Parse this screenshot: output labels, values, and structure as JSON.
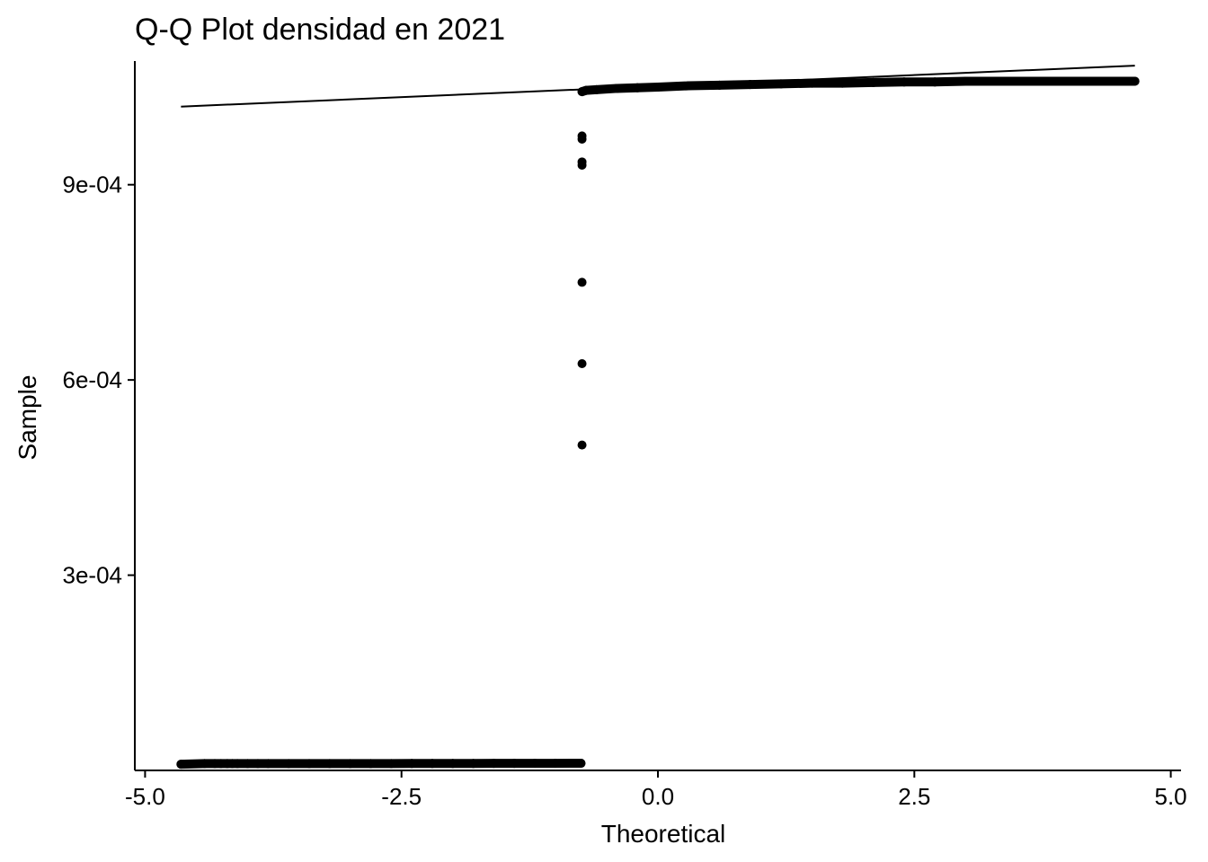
{
  "chart_data": {
    "type": "scatter",
    "title": "Q-Q Plot densidad en 2021",
    "xlabel": "Theoretical",
    "ylabel": "Sample",
    "xlim": [
      -5.1,
      5.1
    ],
    "ylim": [
      0.0,
      0.00109
    ],
    "x_ticks": [
      -5.0,
      -2.5,
      0.0,
      2.5,
      5.0
    ],
    "x_tick_labels": [
      "-5.0",
      "-2.5",
      "0.0",
      "2.5",
      "5.0"
    ],
    "y_ticks": [
      0.0003,
      0.0006,
      0.0009
    ],
    "y_tick_labels": [
      "3e-04",
      "6e-04",
      "9e-04"
    ],
    "grid": false,
    "legend": "none",
    "point_color": "#000000",
    "reference_line": {
      "x": [
        -4.65,
        4.65
      ],
      "y": [
        0.00102,
        0.001083
      ]
    },
    "series": [
      {
        "values": [
          {
            "x": -4.65,
            "y": 9.5e-06
          },
          {
            "x": -4.42,
            "y": 1.05e-05
          },
          {
            "x": -4.32,
            "y": 1.05e-05
          },
          {
            "x": -4.26,
            "y": 1.05e-05
          },
          {
            "x": -4.2,
            "y": 1.05e-05
          },
          {
            "x": -4.15,
            "y": 1.05e-05
          },
          {
            "x": -4.1,
            "y": 1.05e-05
          },
          {
            "x": -4.0,
            "y": 1.05e-05
          },
          {
            "x": -3.9,
            "y": 1.05e-05
          },
          {
            "x": -3.8,
            "y": 1.05e-05
          },
          {
            "x": -3.6,
            "y": 1.05e-05
          },
          {
            "x": -3.4,
            "y": 1.06e-05
          },
          {
            "x": -3.2,
            "y": 1.06e-05
          },
          {
            "x": -3.0,
            "y": 1.06e-05
          },
          {
            "x": -2.8,
            "y": 1.06e-05
          },
          {
            "x": -2.6,
            "y": 1.06e-05
          },
          {
            "x": -2.4,
            "y": 1.07e-05
          },
          {
            "x": -2.2,
            "y": 1.07e-05
          },
          {
            "x": -2.0,
            "y": 1.07e-05
          },
          {
            "x": -1.8,
            "y": 1.07e-05
          },
          {
            "x": -1.6,
            "y": 1.08e-05
          },
          {
            "x": -1.4,
            "y": 1.08e-05
          },
          {
            "x": -1.2,
            "y": 1.09e-05
          },
          {
            "x": -1.0,
            "y": 1.09e-05
          },
          {
            "x": -0.85,
            "y": 1.1e-05
          },
          {
            "x": -0.75,
            "y": 1.1e-05
          },
          {
            "x": -0.74,
            "y": 0.0005
          },
          {
            "x": -0.74,
            "y": 0.000625
          },
          {
            "x": -0.74,
            "y": 0.00075
          },
          {
            "x": -0.74,
            "y": 0.00093
          },
          {
            "x": -0.74,
            "y": 0.000935
          },
          {
            "x": -0.74,
            "y": 0.00097
          },
          {
            "x": -0.74,
            "y": 0.000975
          },
          {
            "x": -0.74,
            "y": 0.001043
          },
          {
            "x": -0.7,
            "y": 0.001045
          },
          {
            "x": -0.6,
            "y": 0.001046
          },
          {
            "x": -0.4,
            "y": 0.001048
          },
          {
            "x": -0.2,
            "y": 0.001049
          },
          {
            "x": 0.0,
            "y": 0.00105
          },
          {
            "x": 0.3,
            "y": 0.001052
          },
          {
            "x": 0.6,
            "y": 0.001053
          },
          {
            "x": 0.9,
            "y": 0.001054
          },
          {
            "x": 1.2,
            "y": 0.001055
          },
          {
            "x": 1.5,
            "y": 0.001056
          },
          {
            "x": 1.8,
            "y": 0.001056
          },
          {
            "x": 2.1,
            "y": 0.001057
          },
          {
            "x": 2.4,
            "y": 0.001058
          },
          {
            "x": 2.7,
            "y": 0.001058
          },
          {
            "x": 3.0,
            "y": 0.001059
          },
          {
            "x": 3.3,
            "y": 0.001059
          },
          {
            "x": 3.6,
            "y": 0.001059
          },
          {
            "x": 3.9,
            "y": 0.001059
          },
          {
            "x": 4.05,
            "y": 0.001059
          },
          {
            "x": 4.12,
            "y": 0.001059
          },
          {
            "x": 4.18,
            "y": 0.001059
          },
          {
            "x": 4.25,
            "y": 0.001059
          },
          {
            "x": 4.35,
            "y": 0.001059
          },
          {
            "x": 4.45,
            "y": 0.001059
          },
          {
            "x": 4.65,
            "y": 0.001059
          }
        ]
      }
    ]
  }
}
